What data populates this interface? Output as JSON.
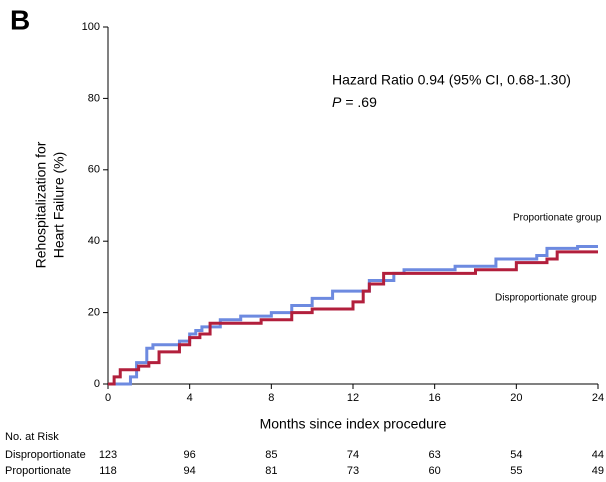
{
  "chart_data": {
    "type": "step",
    "panel_label": "B",
    "annotation": "Hazard Ratio 0.94 (95% CI, 0.68-1.30)",
    "p_symbol": "P",
    "p_text": "= .69",
    "ylabel": [
      "Rehospitalization for",
      "Heart Failure (%)"
    ],
    "xlabel": "Months since index procedure",
    "xlim": [
      0,
      24
    ],
    "xticks": [
      0,
      4,
      8,
      12,
      16,
      20,
      24
    ],
    "ylim": [
      0,
      100
    ],
    "yticks": [
      0,
      20,
      40,
      60,
      80,
      100
    ],
    "series": [
      {
        "name": "Proportionate group",
        "color": "#6d8ae0",
        "x": [
          0,
          1.1,
          1.4,
          1.9,
          2.2,
          3.5,
          4.0,
          4.3,
          4.6,
          5.5,
          6.5,
          8.0,
          9.0,
          10.0,
          11.0,
          12.8,
          14.0,
          14.5,
          17.0,
          19.0,
          21.0,
          21.5,
          23.0,
          24.0
        ],
        "values": [
          0,
          2,
          6,
          10,
          11,
          12,
          14,
          15,
          16,
          18,
          19,
          20,
          22,
          24,
          26,
          29,
          31,
          32,
          33,
          35,
          36,
          38,
          38.5,
          38.5
        ]
      },
      {
        "name": "Disproportionate group",
        "color": "#b21f3c",
        "x": [
          0,
          0.3,
          0.6,
          1.5,
          2.0,
          2.5,
          3.5,
          4.0,
          4.5,
          5.0,
          7.5,
          9.0,
          10.0,
          12.0,
          12.5,
          12.8,
          13.5,
          18.0,
          20.0,
          21.5,
          22.0,
          24.0
        ],
        "values": [
          0,
          2,
          4,
          5,
          6,
          9,
          11,
          13,
          14,
          17,
          18,
          20,
          21,
          23,
          26,
          28,
          31,
          32,
          34,
          35,
          37,
          37
        ]
      }
    ],
    "risk_table": {
      "title": "No. at Risk",
      "rows": [
        {
          "label": "Disproportionate",
          "values": [
            123,
            96,
            85,
            74,
            63,
            54,
            44
          ]
        },
        {
          "label": "Proportionate",
          "values": [
            118,
            94,
            81,
            73,
            60,
            55,
            49
          ]
        }
      ]
    }
  }
}
